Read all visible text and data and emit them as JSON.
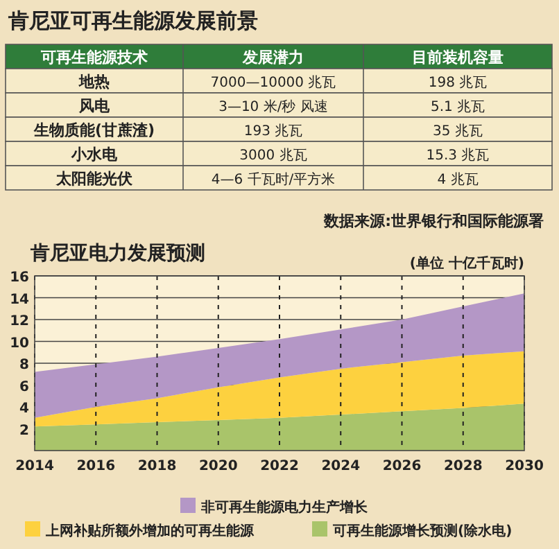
{
  "chart_data": [
    {
      "type": "other",
      "title": "肯尼亚可再生能源发展前景",
      "annotations": [
        "可再生能源技术",
        "发展潜力",
        "目前装机容量",
        "地热",
        "7000—10000 兆瓦",
        "198 兆瓦",
        "风电",
        "3—10 米/秒 风速",
        "5.1 兆瓦",
        "生物质能(甘蔗渣)",
        "193 兆瓦",
        "35 兆瓦",
        "小水电",
        "3000 兆瓦",
        "15.3 兆瓦",
        "太阳能光伏",
        "4—6 千瓦时/平方米",
        "4 兆瓦",
        "数据来源:世界银行和国际能源署"
      ]
    },
    {
      "type": "area",
      "title": "肯尼亚电力发展预测",
      "ylabel": "(单位 十亿千瓦时)",
      "stacked": true,
      "x": [
        2014,
        2016,
        2018,
        2020,
        2022,
        2024,
        2026,
        2028,
        2030
      ],
      "xlim": [
        2014,
        2030
      ],
      "xticks": [
        2014,
        2016,
        2018,
        2020,
        2022,
        2024,
        2026,
        2028,
        2030
      ],
      "ylim": [
        0,
        16
      ],
      "yticks": [
        2,
        4,
        6,
        8,
        10,
        12,
        14,
        16
      ],
      "grid": true,
      "legend": "bottom",
      "series": [
        {
          "name": "可再生能源增长预测(除水电)",
          "color": "#a9c46a",
          "values": [
            2.2,
            2.4,
            2.6,
            2.8,
            3.0,
            3.3,
            3.6,
            3.9,
            4.3
          ]
        },
        {
          "name": "上网补贴所额外增加的可再生能源",
          "color": "#fdd13f",
          "values": [
            0.8,
            1.6,
            2.2,
            3.0,
            3.7,
            4.2,
            4.5,
            4.8,
            4.8
          ]
        },
        {
          "name": "非可再生能源电力生产增长",
          "color": "#b497c6",
          "values": [
            4.2,
            3.9,
            3.8,
            3.6,
            3.5,
            3.6,
            3.9,
            4.5,
            5.3
          ]
        }
      ]
    }
  ]
}
